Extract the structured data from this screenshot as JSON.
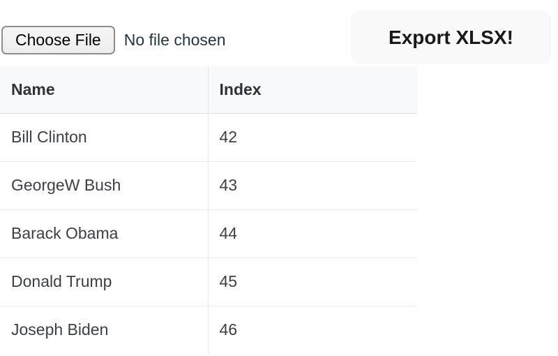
{
  "file_input": {
    "button_label": "Choose File",
    "status_text": "No file chosen"
  },
  "export_button": {
    "label": "Export XLSX!"
  },
  "table": {
    "columns": {
      "name": "Name",
      "index": "Index"
    },
    "rows": [
      {
        "name": "Bill Clinton",
        "index": "42"
      },
      {
        "name": "GeorgeW Bush",
        "index": "43"
      },
      {
        "name": "Barack Obama",
        "index": "44"
      },
      {
        "name": "Donald Trump",
        "index": "45"
      },
      {
        "name": "Joseph Biden",
        "index": "46"
      }
    ]
  },
  "colors": {
    "export_button_bg": "#f9f9f9",
    "table_header_bg": "#f8f9fa",
    "table_border": "#e7e8ea",
    "text_primary": "#213547"
  }
}
